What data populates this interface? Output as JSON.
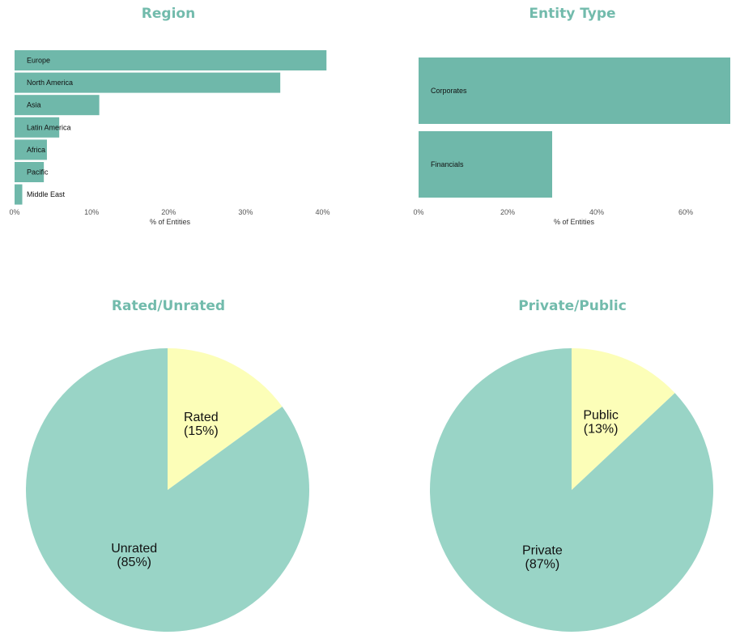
{
  "colors": {
    "title": "#72bbac",
    "bar": "#6fb8aa",
    "pie_major": "#99d4c6",
    "pie_minor": "#fcfeb8"
  },
  "chart_data": [
    {
      "id": "region",
      "type": "bar",
      "orientation": "horizontal",
      "title": "Region",
      "xlabel": "% of Entities",
      "categories": [
        "Europe",
        "North America",
        "Asia",
        "Latin America",
        "Africa",
        "Pacific",
        "Middle East"
      ],
      "values": [
        40.5,
        34.5,
        11,
        5.8,
        4.2,
        3.8,
        1
      ],
      "xlim": [
        0,
        41
      ],
      "ticks": [
        0,
        10,
        20,
        30,
        40
      ],
      "tick_labels": [
        "0%",
        "10%",
        "20%",
        "30%",
        "40%"
      ]
    },
    {
      "id": "entity_type",
      "type": "bar",
      "orientation": "horizontal",
      "title": "Entity Type",
      "xlabel": "% of Entities",
      "categories": [
        "Corporates",
        "Financials"
      ],
      "values": [
        70,
        30
      ],
      "xlim": [
        0,
        70
      ],
      "ticks": [
        0,
        20,
        40,
        60
      ],
      "tick_labels": [
        "0%",
        "20%",
        "40%",
        "60%"
      ]
    },
    {
      "id": "rated",
      "type": "pie",
      "title": "Rated/Unrated",
      "slices": [
        {
          "name": "Rated",
          "pct_label": "(15%)",
          "value": 15
        },
        {
          "name": "Unrated",
          "pct_label": "(85%)",
          "value": 85
        }
      ]
    },
    {
      "id": "private",
      "type": "pie",
      "title": "Private/Public",
      "slices": [
        {
          "name": "Public",
          "pct_label": "(13%)",
          "value": 13
        },
        {
          "name": "Private",
          "pct_label": "(87%)",
          "value": 87
        }
      ]
    }
  ]
}
